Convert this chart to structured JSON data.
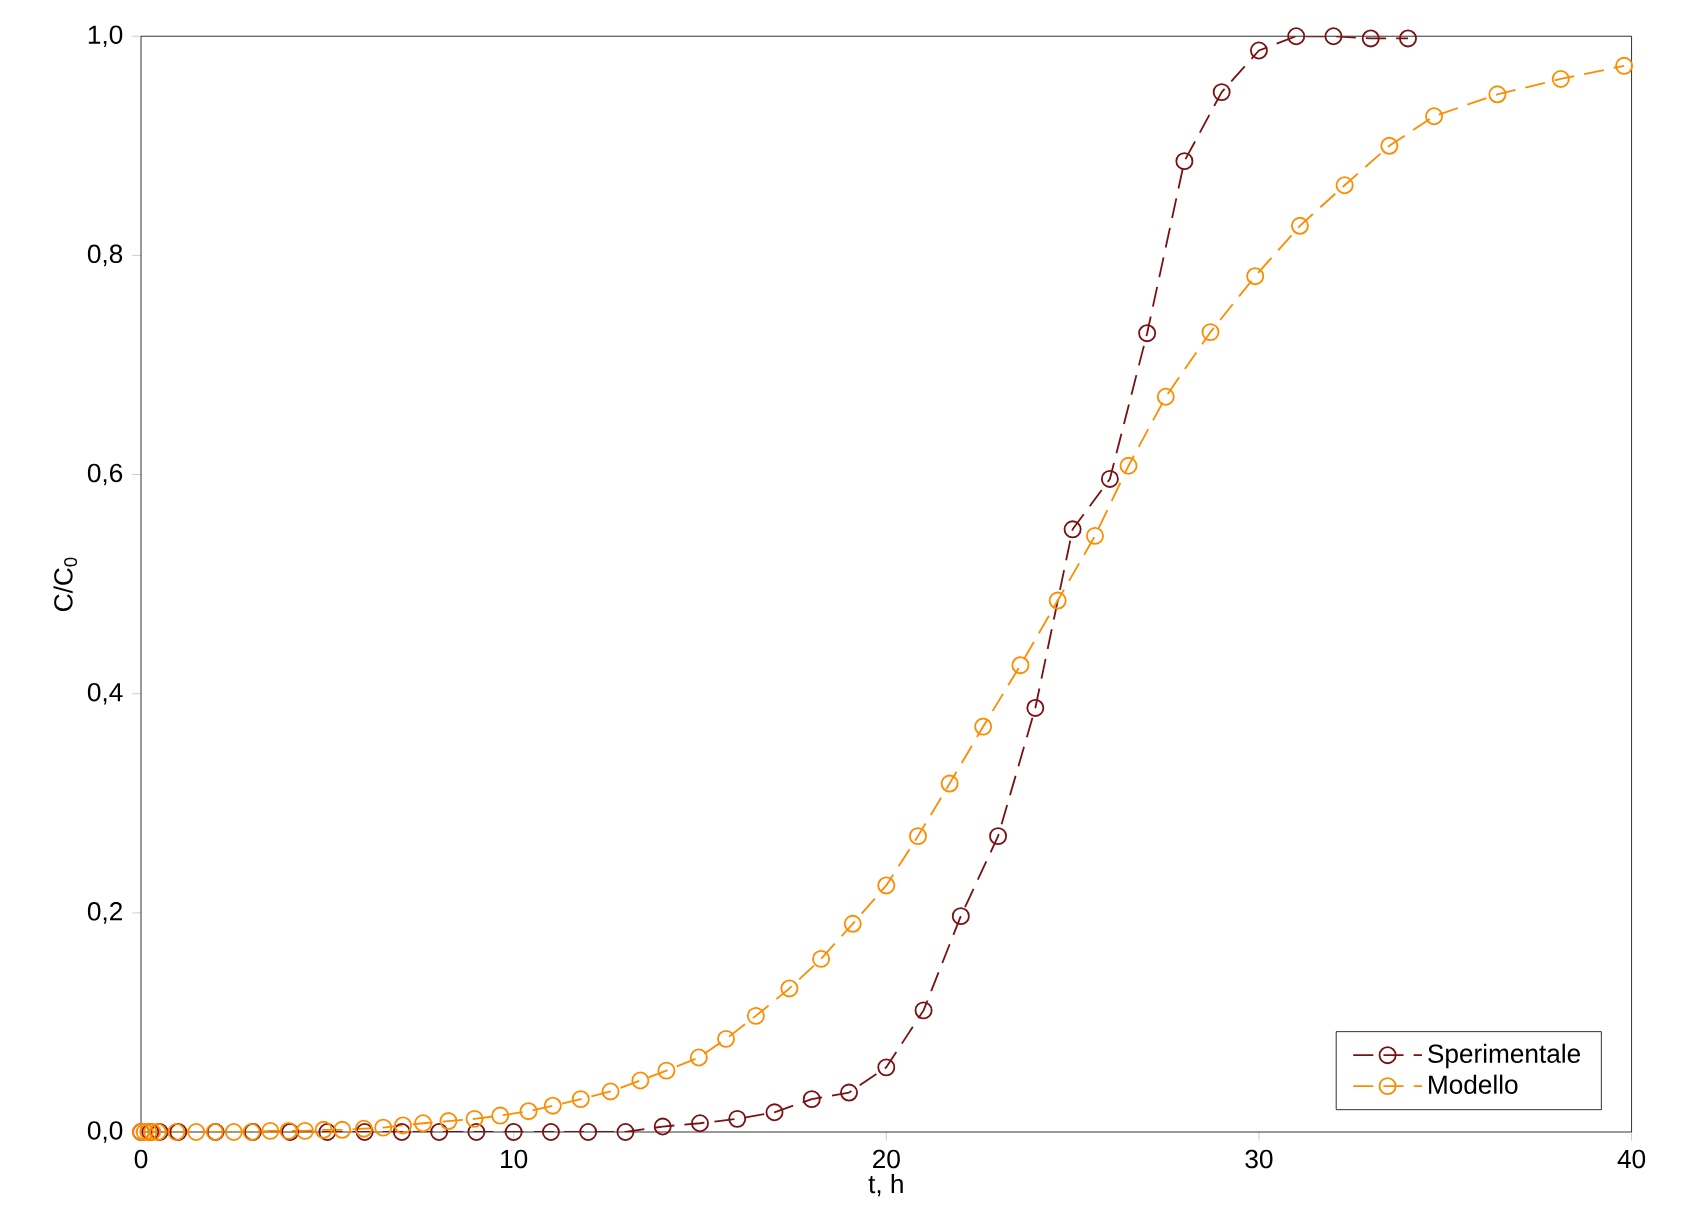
{
  "chart_data": {
    "type": "line",
    "xlabel": "t, h",
    "ylabel": "C/C$_{0}$",
    "xlim": [
      0,
      40
    ],
    "ylim": [
      0,
      1
    ],
    "xticks": [
      0,
      10,
      20,
      30,
      40
    ],
    "yticks": [
      {
        "value": 0,
        "label": "0,0"
      },
      {
        "value": 0.2,
        "label": "0,2"
      },
      {
        "value": 0.4,
        "label": "0,4"
      },
      {
        "value": 0.6,
        "label": "0,6"
      },
      {
        "value": 0.8,
        "label": "0,8"
      },
      {
        "value": 1,
        "label": "1,0"
      }
    ],
    "marker": "circle",
    "line_style": "dashed",
    "legend": "bottom right",
    "grid": false,
    "series": [
      {
        "name": "Sperimentale",
        "color": "#7b1113",
        "x": [
          0,
          0.25,
          0.5,
          1,
          2,
          3,
          4,
          5,
          6,
          7,
          8,
          9,
          10,
          11,
          12,
          13,
          14,
          15,
          16,
          17,
          18,
          19,
          20,
          21,
          22,
          23,
          24,
          25,
          26,
          27,
          28,
          29,
          30,
          31,
          32,
          33,
          34
        ],
        "values": [
          0,
          0,
          0,
          0,
          0,
          0,
          0,
          0,
          0,
          0,
          0,
          0,
          0,
          0,
          0,
          0,
          0.005,
          0.008,
          0.012,
          0.018,
          0.03,
          0.036,
          0.059,
          0.111,
          0.197,
          0.27,
          0.387,
          0.55,
          0.596,
          0.729,
          0.886,
          0.949,
          0.987,
          1.0,
          1.0,
          0.998,
          0.998
        ]
      },
      {
        "name": "Modello",
        "color": "#ff8c00",
        "x": [
          0,
          0.1,
          0.2,
          0.3,
          0.45,
          0.95,
          1.48,
          1.98,
          2.49,
          2.97,
          3.47,
          3.96,
          4.4,
          4.9,
          5.4,
          5.98,
          6.5,
          7.03,
          7.57,
          8.25,
          8.95,
          9.64,
          10.4,
          11.05,
          11.8,
          12.6,
          13.4,
          14.1,
          14.97,
          15.7,
          16.5,
          17.4,
          18.25,
          19.1,
          20.0,
          20.85,
          21.7,
          22.6,
          23.6,
          24.6,
          25.6,
          26.5,
          27.5,
          28.7,
          29.9,
          31.1,
          32.3,
          33.5,
          34.7,
          36.4,
          38.1,
          39.8
        ],
        "values": [
          0,
          0,
          0,
          0,
          0,
          0,
          0,
          0,
          0,
          0,
          0.001,
          0.001,
          0.001,
          0.002,
          0.002,
          0.003,
          0.004,
          0.006,
          0.008,
          0.01,
          0.012,
          0.015,
          0.019,
          0.024,
          0.03,
          0.037,
          0.047,
          0.056,
          0.068,
          0.085,
          0.106,
          0.131,
          0.158,
          0.19,
          0.225,
          0.27,
          0.318,
          0.37,
          0.426,
          0.485,
          0.544,
          0.608,
          0.671,
          0.73,
          0.781,
          0.827,
          0.864,
          0.9,
          0.927,
          0.947,
          0.961,
          0.973
        ]
      }
    ]
  }
}
